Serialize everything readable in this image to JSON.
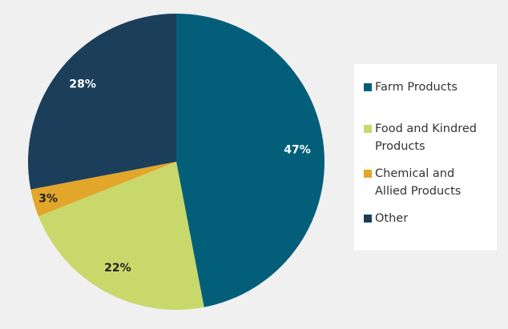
{
  "chart_data": {
    "type": "pie",
    "categories": [
      "Farm Products",
      "Food and Kindred Products",
      "Chemical and Allied Products",
      "Other"
    ],
    "values": [
      47,
      22,
      3,
      28
    ],
    "value_labels": [
      "47%",
      "22%",
      "3%",
      "28%"
    ],
    "colors": [
      "#035f79",
      "#c9d86b",
      "#e2a62a",
      "#1b3e5b"
    ],
    "legend": "right"
  }
}
